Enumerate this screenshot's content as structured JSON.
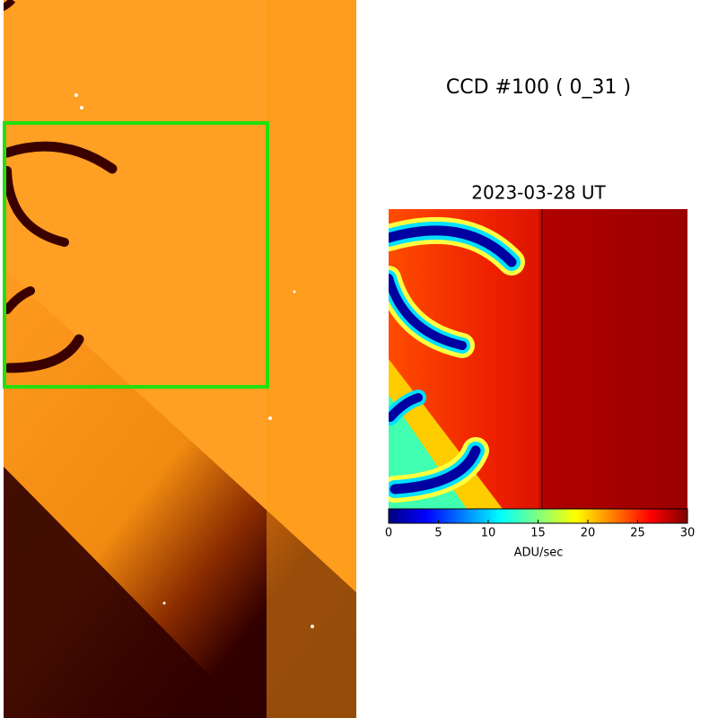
{
  "chart_data": {
    "type": "image",
    "title": "CCD #100 ( 0_31 )",
    "subtitle": "2023-03-28 UT",
    "colorbar": {
      "label": "ADU/sec",
      "lim": [
        0,
        30
      ],
      "ticks": [
        0,
        5,
        10,
        15,
        20,
        25,
        30
      ],
      "colormap": "jet"
    }
  }
}
